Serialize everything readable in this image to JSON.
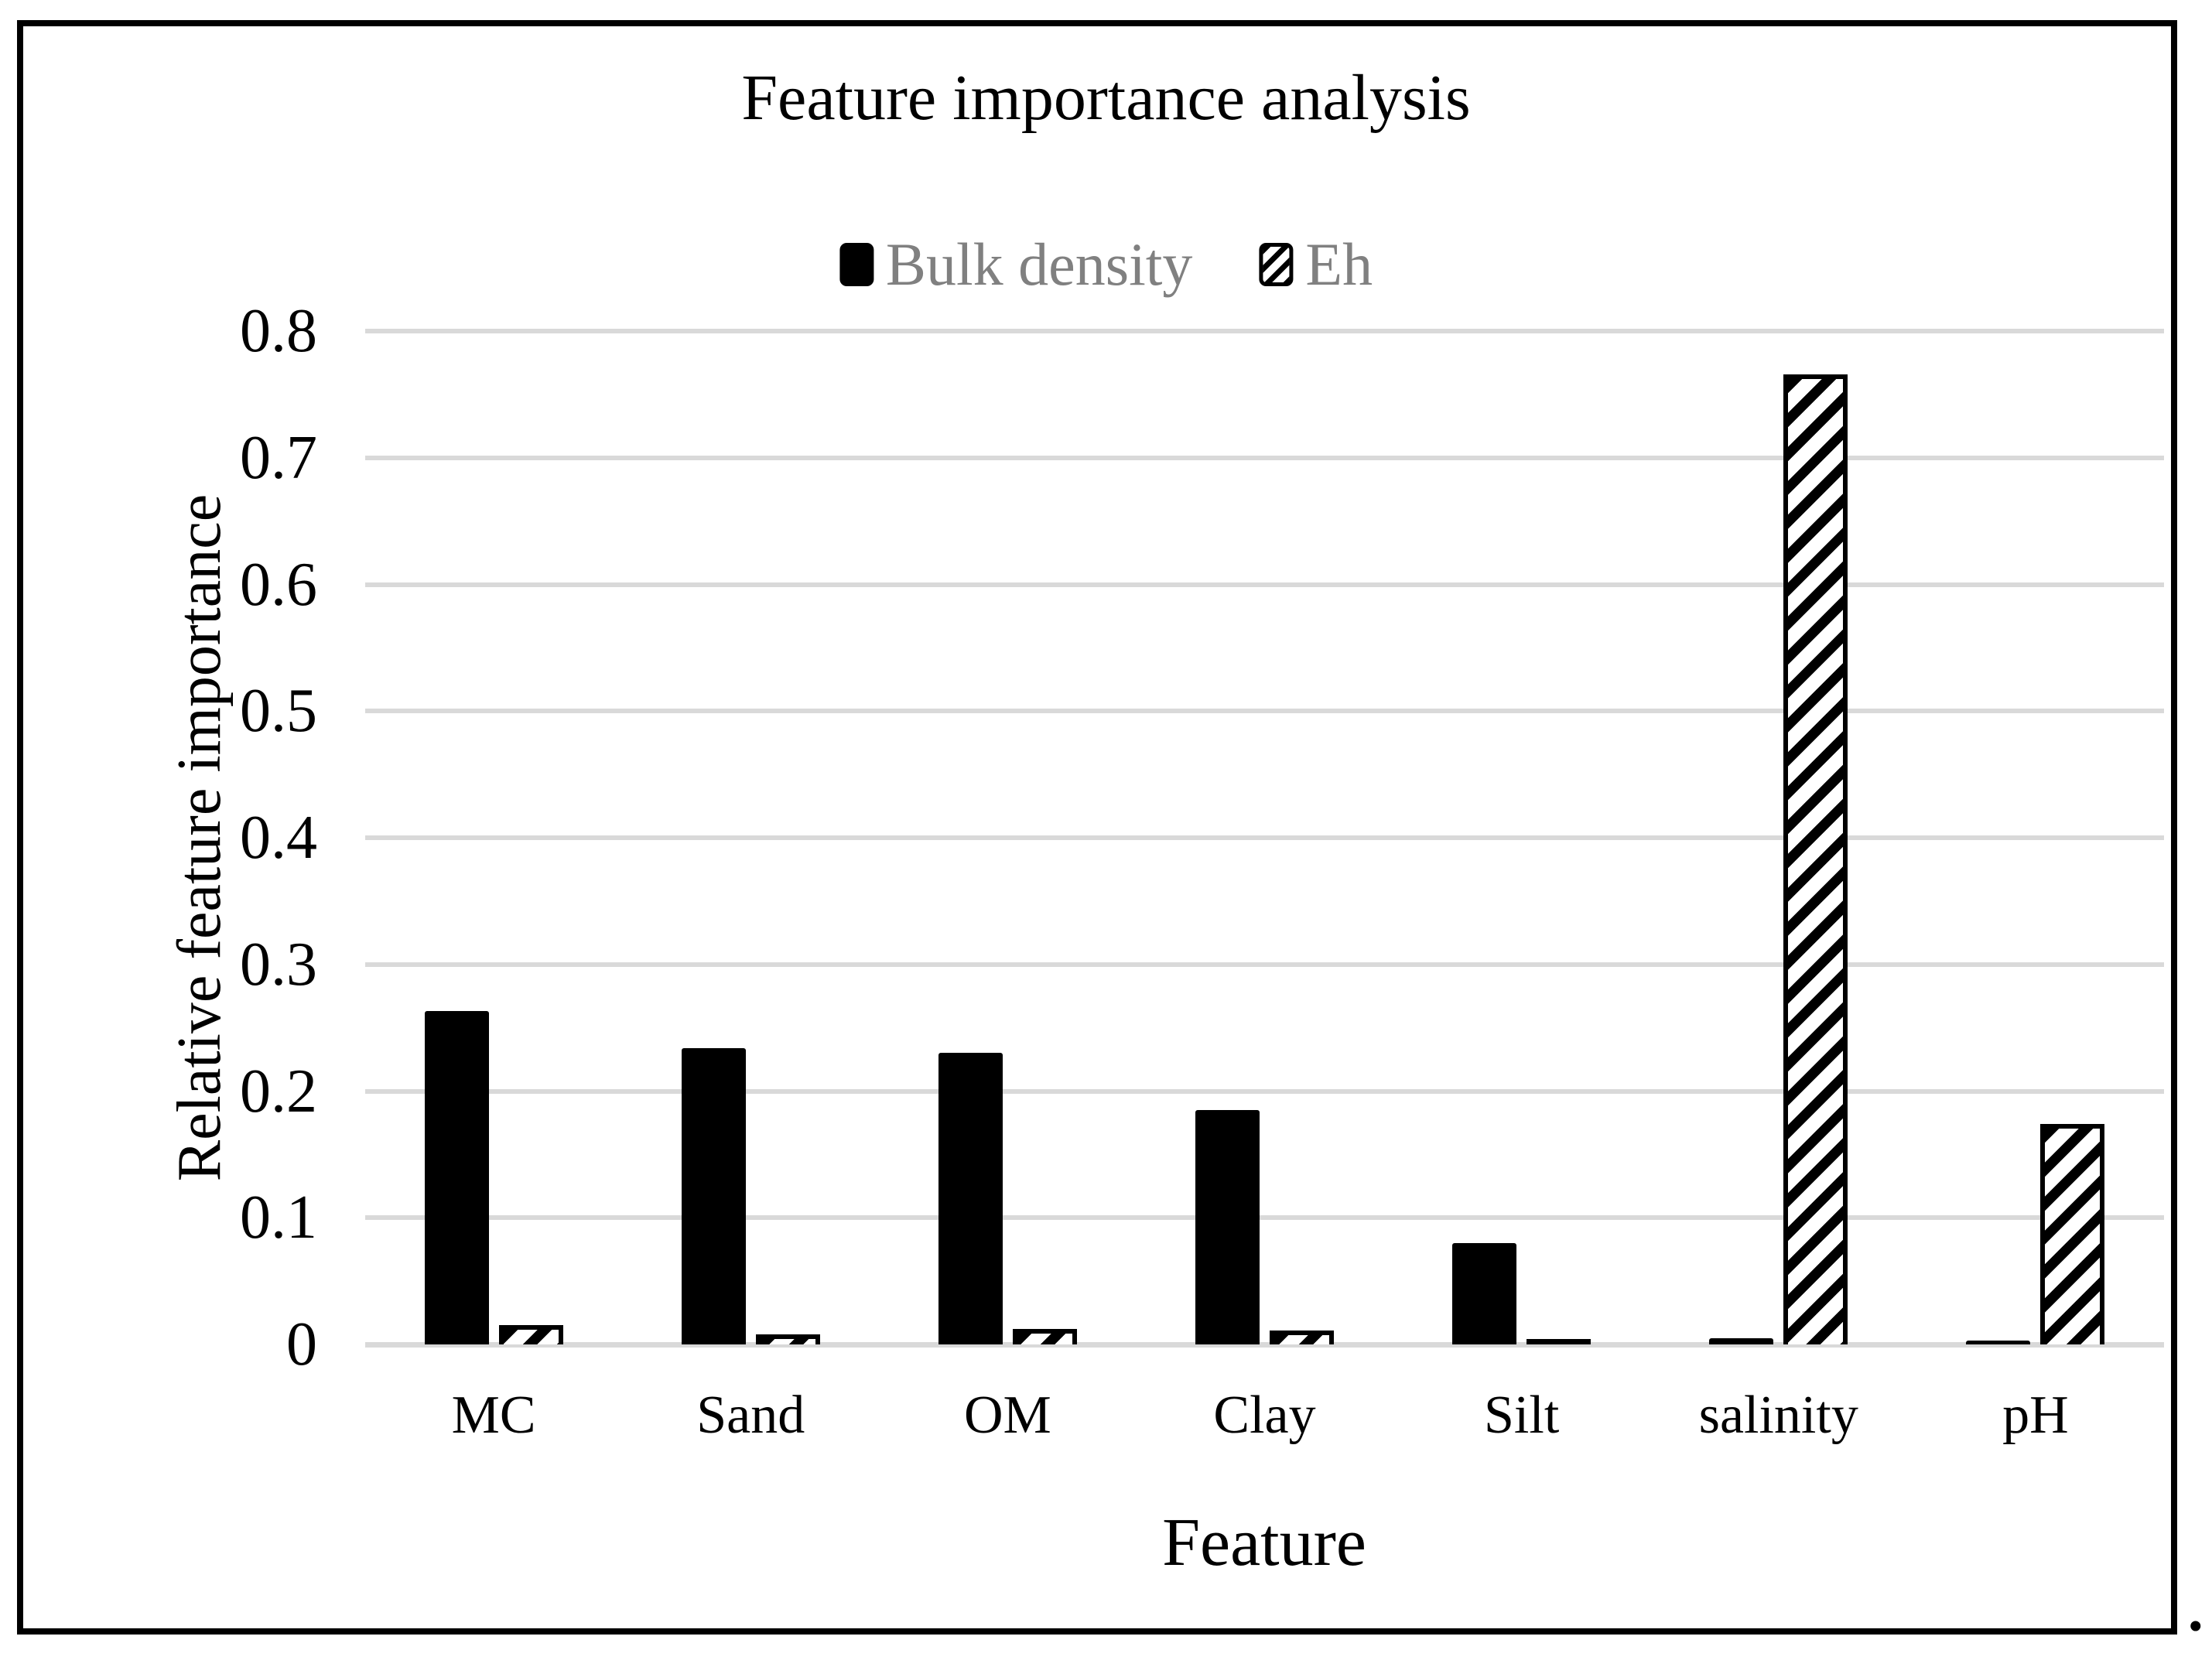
{
  "figure": {
    "title": "Feature importance analysis",
    "x_axis_title": "Feature",
    "y_axis_title": "Relative feature importance",
    "trailing_period": "."
  },
  "legend": {
    "position": "top-center",
    "text_color": "#808080",
    "items": [
      {
        "label": "Bulk density",
        "swatch": "solid-black-square"
      },
      {
        "label": "Eh",
        "swatch": "black-diagonal-hatch-square"
      }
    ]
  },
  "colors": {
    "background": "#ffffff",
    "frame_border": "#000000",
    "bar_solid": "#000000",
    "bar_hatch_stroke": "#000000",
    "bar_hatch_fill": "#ffffff",
    "gridline": "#d9d9d9",
    "text": "#000000",
    "legend_text": "#808080"
  },
  "chart_data": {
    "type": "bar",
    "title": "Feature importance analysis",
    "xlabel": "Feature",
    "ylabel": "Relative feature importance",
    "categories": [
      "MC",
      "Sand",
      "OM",
      "Clay",
      "Silt",
      "salinity",
      "pH"
    ],
    "series": [
      {
        "name": "Bulk density",
        "style": "solid-black",
        "values": [
          0.263,
          0.234,
          0.23,
          0.185,
          0.08,
          0.005,
          0.003
        ]
      },
      {
        "name": "Eh",
        "style": "diagonal-hatch",
        "values": [
          0.015,
          0.008,
          0.012,
          0.011,
          0.004,
          0.766,
          0.174
        ]
      }
    ],
    "ylim": [
      0,
      0.8
    ],
    "ytick_step": 0.1,
    "ytick_labels": [
      "0",
      "0.1",
      "0.2",
      "0.3",
      "0.4",
      "0.5",
      "0.6",
      "0.7",
      "0.8"
    ],
    "grid": "horizontal",
    "legend_position": "top-center"
  }
}
